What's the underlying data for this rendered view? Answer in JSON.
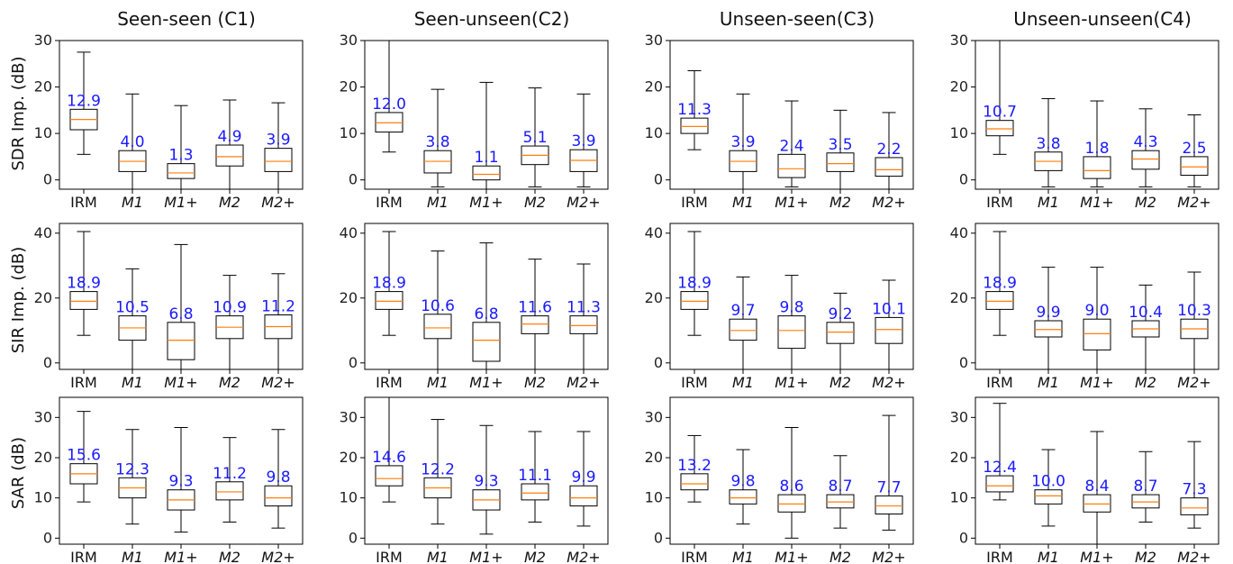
{
  "column_titles": [
    "Seen-seen (C1)",
    "Seen-unseen(C2)",
    "Unseen-seen(C3)",
    "Unseen-unseen(C4)"
  ],
  "row_labels": [
    "SDR Imp. (dB)",
    "SIR Imp. (dB)",
    "SAR (dB)"
  ],
  "colors": {
    "box": "#000000",
    "median": "#ff7f0e",
    "label": "#1a1aff"
  },
  "chart_data": [
    {
      "type": "box",
      "metric": "SDR Imp. (dB)",
      "ylim": [
        -2,
        30
      ],
      "yticks": [
        0,
        10,
        20,
        30
      ],
      "categories": [
        "IRM",
        "M1",
        "M1+",
        "M2",
        "M2+"
      ],
      "conditions": [
        {
          "name": "Seen-seen (C1)",
          "boxes": [
            {
              "label": "12.9",
              "whislo": 5.5,
              "q1": 10.8,
              "med": 13.0,
              "q3": 15.2,
              "whishi": 27.5
            },
            {
              "label": "4.0",
              "whislo": -2,
              "q1": 1.8,
              "med": 4.0,
              "q3": 6.3,
              "whishi": 18.5
            },
            {
              "label": "1.3",
              "whislo": -2,
              "q1": 0.3,
              "med": 1.5,
              "q3": 3.5,
              "whishi": 16.0
            },
            {
              "label": "4.9",
              "whislo": -2,
              "q1": 3.0,
              "med": 5.0,
              "q3": 7.5,
              "whishi": 17.2
            },
            {
              "label": "3.9",
              "whislo": -2,
              "q1": 1.8,
              "med": 4.0,
              "q3": 6.8,
              "whishi": 16.6
            }
          ]
        },
        {
          "name": "Seen-unseen(C2)",
          "boxes": [
            {
              "label": "12.0",
              "whislo": 6.0,
              "q1": 10.3,
              "med": 12.3,
              "q3": 14.5,
              "whishi": 30
            },
            {
              "label": "3.8",
              "whislo": -1.5,
              "q1": 1.5,
              "med": 4.0,
              "q3": 6.3,
              "whishi": 19.5
            },
            {
              "label": "1.1",
              "whislo": -2,
              "q1": 0,
              "med": 1.2,
              "q3": 3.0,
              "whishi": 21.0
            },
            {
              "label": "5.1",
              "whislo": -1.5,
              "q1": 3.3,
              "med": 5.3,
              "q3": 7.3,
              "whishi": 19.8
            },
            {
              "label": "3.9",
              "whislo": -1.5,
              "q1": 1.8,
              "med": 4.2,
              "q3": 6.5,
              "whishi": 18.5
            }
          ]
        },
        {
          "name": "Unseen-seen(C3)",
          "boxes": [
            {
              "label": "11.3",
              "whislo": 6.5,
              "q1": 10.0,
              "med": 11.5,
              "q3": 13.3,
              "whishi": 23.5
            },
            {
              "label": "3.9",
              "whislo": -2,
              "q1": 1.8,
              "med": 4.0,
              "q3": 6.3,
              "whishi": 18.5
            },
            {
              "label": "2.4",
              "whislo": -1.5,
              "q1": 0.5,
              "med": 2.4,
              "q3": 5.5,
              "whishi": 17.0
            },
            {
              "label": "3.5",
              "whislo": -2,
              "q1": 1.8,
              "med": 3.5,
              "q3": 5.8,
              "whishi": 15.0
            },
            {
              "label": "2.2",
              "whislo": -2,
              "q1": 0.8,
              "med": 2.2,
              "q3": 4.8,
              "whishi": 14.5
            }
          ]
        },
        {
          "name": "Unseen-unseen(C4)",
          "boxes": [
            {
              "label": "10.7",
              "whislo": 5.5,
              "q1": 9.5,
              "med": 11.0,
              "q3": 12.8,
              "whishi": 30
            },
            {
              "label": "3.8",
              "whislo": -1.5,
              "q1": 2.0,
              "med": 4.0,
              "q3": 6.0,
              "whishi": 17.5
            },
            {
              "label": "1.8",
              "whislo": -1.5,
              "q1": 0.3,
              "med": 2.0,
              "q3": 5.0,
              "whishi": 17.0
            },
            {
              "label": "4.3",
              "whislo": -1.5,
              "q1": 2.3,
              "med": 4.5,
              "q3": 6.3,
              "whishi": 15.3
            },
            {
              "label": "2.5",
              "whislo": -1.5,
              "q1": 1.0,
              "med": 2.8,
              "q3": 5.0,
              "whishi": 14.0
            }
          ]
        }
      ]
    },
    {
      "type": "box",
      "metric": "SIR Imp. (dB)",
      "ylim": [
        -2,
        43
      ],
      "yticks": [
        0,
        20,
        40
      ],
      "categories": [
        "IRM",
        "M1",
        "M1+",
        "M2",
        "M2+"
      ],
      "conditions": [
        {
          "name": "Seen-seen (C1)",
          "boxes": [
            {
              "label": "18.9",
              "whislo": 8.5,
              "q1": 16.5,
              "med": 19.0,
              "q3": 22.0,
              "whishi": 40.5
            },
            {
              "label": "10.5",
              "whislo": -2,
              "q1": 7.0,
              "med": 10.8,
              "q3": 14.5,
              "whishi": 29.0
            },
            {
              "label": "6.8",
              "whislo": -2,
              "q1": 1.0,
              "med": 7.0,
              "q3": 12.5,
              "whishi": 36.5
            },
            {
              "label": "10.9",
              "whislo": -2,
              "q1": 7.5,
              "med": 11.0,
              "q3": 14.5,
              "whishi": 27.0
            },
            {
              "label": "11.2",
              "whislo": -2,
              "q1": 7.5,
              "med": 11.2,
              "q3": 14.8,
              "whishi": 27.5
            }
          ]
        },
        {
          "name": "Seen-unseen(C2)",
          "boxes": [
            {
              "label": "18.9",
              "whislo": 8.5,
              "q1": 16.5,
              "med": 19.0,
              "q3": 22.0,
              "whishi": 40.5
            },
            {
              "label": "10.6",
              "whislo": -2,
              "q1": 7.5,
              "med": 10.8,
              "q3": 15.0,
              "whishi": 34.5
            },
            {
              "label": "6.8",
              "whislo": -2,
              "q1": 0.5,
              "med": 7.0,
              "q3": 12.5,
              "whishi": 37.0
            },
            {
              "label": "11.6",
              "whislo": -2,
              "q1": 9.0,
              "med": 12.0,
              "q3": 14.5,
              "whishi": 32.0
            },
            {
              "label": "11.3",
              "whislo": -2,
              "q1": 9.0,
              "med": 11.5,
              "q3": 14.5,
              "whishi": 30.5
            }
          ]
        },
        {
          "name": "Unseen-seen(C3)",
          "boxes": [
            {
              "label": "18.9",
              "whislo": 8.5,
              "q1": 16.5,
              "med": 19.0,
              "q3": 22.0,
              "whishi": 40.5
            },
            {
              "label": "9.7",
              "whislo": -2,
              "q1": 7.0,
              "med": 10.0,
              "q3": 13.5,
              "whishi": 26.5
            },
            {
              "label": "9.8",
              "whislo": -2,
              "q1": 4.5,
              "med": 10.0,
              "q3": 14.5,
              "whishi": 27.0
            },
            {
              "label": "9.2",
              "whislo": -2,
              "q1": 6.0,
              "med": 9.5,
              "q3": 12.5,
              "whishi": 21.5
            },
            {
              "label": "10.1",
              "whislo": -2,
              "q1": 6.0,
              "med": 10.3,
              "q3": 14.0,
              "whishi": 25.5
            }
          ]
        },
        {
          "name": "Unseen-unseen(C4)",
          "boxes": [
            {
              "label": "18.9",
              "whislo": 8.5,
              "q1": 16.5,
              "med": 19.0,
              "q3": 22.0,
              "whishi": 40.5
            },
            {
              "label": "9.9",
              "whislo": -2,
              "q1": 8.0,
              "med": 10.3,
              "q3": 13.0,
              "whishi": 29.5
            },
            {
              "label": "9.0",
              "whislo": -2,
              "q1": 4.0,
              "med": 9.0,
              "q3": 13.5,
              "whishi": 29.5
            },
            {
              "label": "10.4",
              "whislo": -2,
              "q1": 8.0,
              "med": 10.5,
              "q3": 13.0,
              "whishi": 24.0
            },
            {
              "label": "10.3",
              "whislo": -2,
              "q1": 7.5,
              "med": 10.5,
              "q3": 13.5,
              "whishi": 28.0
            }
          ]
        }
      ]
    },
    {
      "type": "box",
      "metric": "SAR (dB)",
      "ylim": [
        -1.5,
        35
      ],
      "yticks": [
        0,
        10,
        20,
        30
      ],
      "categories": [
        "IRM",
        "M1",
        "M1+",
        "M2",
        "M2+"
      ],
      "conditions": [
        {
          "name": "Seen-seen (C1)",
          "boxes": [
            {
              "label": "15.6",
              "whislo": 9.0,
              "q1": 13.5,
              "med": 16.0,
              "q3": 18.5,
              "whishi": 31.5
            },
            {
              "label": "12.3",
              "whislo": 3.5,
              "q1": 10.0,
              "med": 12.5,
              "q3": 15.0,
              "whishi": 27.0
            },
            {
              "label": "9.3",
              "whislo": 1.5,
              "q1": 7.0,
              "med": 9.5,
              "q3": 12.0,
              "whishi": 27.5
            },
            {
              "label": "11.2",
              "whislo": 4.0,
              "q1": 9.5,
              "med": 11.5,
              "q3": 14.0,
              "whishi": 25.0
            },
            {
              "label": "9.8",
              "whislo": 2.5,
              "q1": 8.0,
              "med": 10.0,
              "q3": 13.0,
              "whishi": 27.0
            }
          ]
        },
        {
          "name": "Seen-unseen(C2)",
          "boxes": [
            {
              "label": "14.6",
              "whislo": 9.0,
              "q1": 13.0,
              "med": 14.8,
              "q3": 18.0,
              "whishi": 35
            },
            {
              "label": "12.2",
              "whislo": 3.5,
              "q1": 10.0,
              "med": 12.5,
              "q3": 15.0,
              "whishi": 29.5
            },
            {
              "label": "9.3",
              "whislo": 1.0,
              "q1": 7.0,
              "med": 9.5,
              "q3": 12.0,
              "whishi": 28.0
            },
            {
              "label": "11.1",
              "whislo": 4.0,
              "q1": 9.5,
              "med": 11.2,
              "q3": 13.5,
              "whishi": 26.5
            },
            {
              "label": "9.9",
              "whislo": 3.0,
              "q1": 8.0,
              "med": 10.0,
              "q3": 13.0,
              "whishi": 26.5
            }
          ]
        },
        {
          "name": "Unseen-seen(C3)",
          "boxes": [
            {
              "label": "13.2",
              "whislo": 9.0,
              "q1": 12.0,
              "med": 13.5,
              "q3": 16.0,
              "whishi": 25.5
            },
            {
              "label": "9.8",
              "whislo": 3.5,
              "q1": 8.5,
              "med": 10.0,
              "q3": 12.0,
              "whishi": 22.0
            },
            {
              "label": "8.6",
              "whislo": 0,
              "q1": 6.5,
              "med": 8.5,
              "q3": 10.8,
              "whishi": 27.5
            },
            {
              "label": "8.7",
              "whislo": 2.5,
              "q1": 7.5,
              "med": 9.0,
              "q3": 10.8,
              "whishi": 20.5
            },
            {
              "label": "7.7",
              "whislo": 2.0,
              "q1": 6.0,
              "med": 8.0,
              "q3": 10.5,
              "whishi": 30.5
            }
          ]
        },
        {
          "name": "Unseen-unseen(C4)",
          "boxes": [
            {
              "label": "12.4",
              "whislo": 9.5,
              "q1": 11.5,
              "med": 13.0,
              "q3": 15.5,
              "whishi": 33.5
            },
            {
              "label": "10.0",
              "whislo": 3.0,
              "q1": 8.5,
              "med": 10.5,
              "q3": 12.0,
              "whishi": 22.0
            },
            {
              "label": "8.4",
              "whislo": -1.5,
              "q1": 6.5,
              "med": 8.5,
              "q3": 10.8,
              "whishi": 26.5
            },
            {
              "label": "8.7",
              "whislo": 4.0,
              "q1": 7.5,
              "med": 9.0,
              "q3": 10.8,
              "whishi": 21.5
            },
            {
              "label": "7.3",
              "whislo": 2.5,
              "q1": 5.8,
              "med": 7.5,
              "q3": 10.0,
              "whishi": 24.0
            }
          ]
        }
      ]
    }
  ]
}
